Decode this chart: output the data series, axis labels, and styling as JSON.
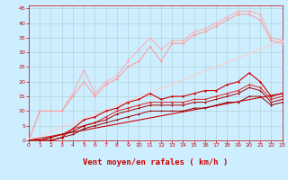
{
  "bg_color": "#cceeff",
  "grid_color": "#aacccc",
  "xlabel": "Vent moyen/en rafales ( km/h )",
  "xlabel_color": "#cc0000",
  "xlabel_fontsize": 6.5,
  "tick_color": "#cc0000",
  "tick_fontsize": 4.5,
  "xlim": [
    0,
    23
  ],
  "ylim": [
    0,
    46
  ],
  "yticks": [
    0,
    5,
    10,
    15,
    20,
    25,
    30,
    35,
    40,
    45
  ],
  "xticks": [
    0,
    1,
    2,
    3,
    4,
    5,
    6,
    7,
    8,
    9,
    10,
    11,
    12,
    13,
    14,
    15,
    16,
    17,
    18,
    19,
    20,
    21,
    22,
    23
  ],
  "lines": [
    {
      "x": [
        0,
        1,
        2,
        3,
        4,
        5,
        6,
        7,
        8,
        9,
        10,
        11,
        12,
        13,
        14,
        15,
        16,
        17,
        18,
        19,
        20,
        21,
        22,
        23
      ],
      "y": [
        0,
        10,
        10,
        10,
        16,
        24,
        16,
        20,
        22,
        27,
        31,
        35,
        31,
        34,
        34,
        37,
        38,
        40,
        42,
        44,
        44,
        43,
        35,
        34
      ],
      "color": "#ffaaaa",
      "lw": 0.7,
      "marker": "D",
      "ms": 1.5
    },
    {
      "x": [
        0,
        1,
        2,
        3,
        4,
        5,
        6,
        7,
        8,
        9,
        10,
        11,
        12,
        13,
        14,
        15,
        16,
        17,
        18,
        19,
        20,
        21,
        22,
        23
      ],
      "y": [
        0,
        10,
        10,
        10,
        15,
        20,
        15,
        19,
        21,
        25,
        27,
        32,
        27,
        33,
        33,
        36,
        37,
        39,
        41,
        43,
        43,
        41,
        34,
        33
      ],
      "color": "#ff9999",
      "lw": 0.7,
      "marker": "D",
      "ms": 1.5
    },
    {
      "x": [
        0,
        1,
        2,
        3,
        4,
        5,
        6,
        7,
        8,
        9,
        10,
        11,
        12,
        13,
        14,
        15,
        16,
        17,
        18,
        19,
        20,
        21,
        22,
        23
      ],
      "y": [
        0,
        0,
        0,
        1,
        4,
        7,
        8,
        10,
        11,
        13,
        14,
        16,
        14,
        15,
        15,
        16,
        17,
        17,
        19,
        20,
        23,
        20,
        15,
        16
      ],
      "color": "#cc0000",
      "lw": 0.8,
      "marker": "D",
      "ms": 1.5
    },
    {
      "x": [
        0,
        1,
        2,
        3,
        4,
        5,
        6,
        7,
        8,
        9,
        10,
        11,
        12,
        13,
        14,
        15,
        16,
        17,
        18,
        19,
        20,
        21,
        22,
        23
      ],
      "y": [
        0,
        0,
        1,
        2,
        4,
        5,
        6,
        8,
        10,
        11,
        12,
        13,
        13,
        13,
        13,
        14,
        14,
        15,
        16,
        17,
        19,
        18,
        14,
        15
      ],
      "color": "#dd2222",
      "lw": 0.7,
      "marker": "D",
      "ms": 1.5
    },
    {
      "x": [
        0,
        1,
        2,
        3,
        4,
        5,
        6,
        7,
        8,
        9,
        10,
        11,
        12,
        13,
        14,
        15,
        16,
        17,
        18,
        19,
        20,
        21,
        22,
        23
      ],
      "y": [
        0,
        0,
        1,
        2,
        3,
        5,
        6,
        7,
        9,
        10,
        11,
        12,
        12,
        12,
        12,
        13,
        13,
        14,
        15,
        16,
        18,
        17,
        13,
        14
      ],
      "color": "#aa0000",
      "lw": 0.7,
      "marker": "D",
      "ms": 1.2
    },
    {
      "x": [
        0,
        1,
        2,
        3,
        4,
        5,
        6,
        7,
        8,
        9,
        10,
        11,
        12,
        13,
        14,
        15,
        16,
        17,
        18,
        19,
        20,
        21,
        22,
        23
      ],
      "y": [
        0,
        0,
        0,
        1,
        2,
        4,
        5,
        6,
        7,
        8,
        9,
        10,
        10,
        10,
        10,
        11,
        11,
        12,
        13,
        13,
        15,
        15,
        12,
        13
      ],
      "color": "#990000",
      "lw": 0.7,
      "marker": "D",
      "ms": 1.2
    },
    {
      "x": [
        0,
        23
      ],
      "y": [
        0,
        34
      ],
      "color": "#ffcccc",
      "lw": 0.8,
      "marker": null,
      "ms": 0
    },
    {
      "x": [
        0,
        23
      ],
      "y": [
        0,
        16
      ],
      "color": "#cc0000",
      "lw": 0.8,
      "marker": null,
      "ms": 0
    }
  ]
}
